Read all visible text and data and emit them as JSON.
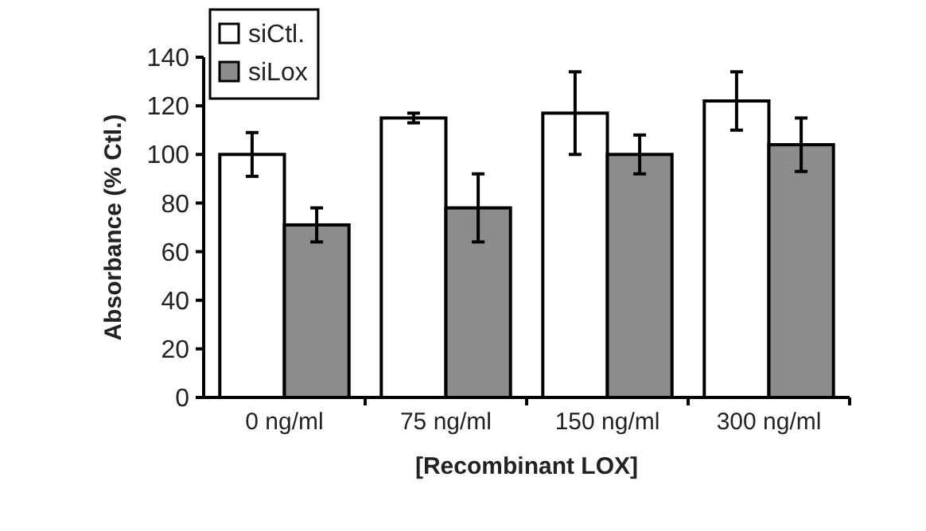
{
  "chart_data": {
    "type": "bar",
    "xlabel": "[Recombinant LOX]",
    "ylabel": "Absorbance (% Ctl.)",
    "categories": [
      "0 ng/ml",
      "75 ng/ml",
      "150 ng/ml",
      "300 ng/ml"
    ],
    "series": [
      {
        "name": "siCtl.",
        "color": "#ffffff",
        "values": [
          100,
          115,
          117,
          122
        ],
        "errors": [
          9,
          2,
          17,
          12
        ]
      },
      {
        "name": "siLox",
        "color": "#8c8c8c",
        "values": [
          71,
          78,
          100,
          104
        ],
        "errors": [
          7,
          14,
          8,
          11
        ]
      }
    ],
    "ylim": [
      0,
      140
    ],
    "yticks": [
      0,
      20,
      40,
      60,
      80,
      100,
      120,
      140
    ],
    "legend": "top left",
    "grid": false
  }
}
